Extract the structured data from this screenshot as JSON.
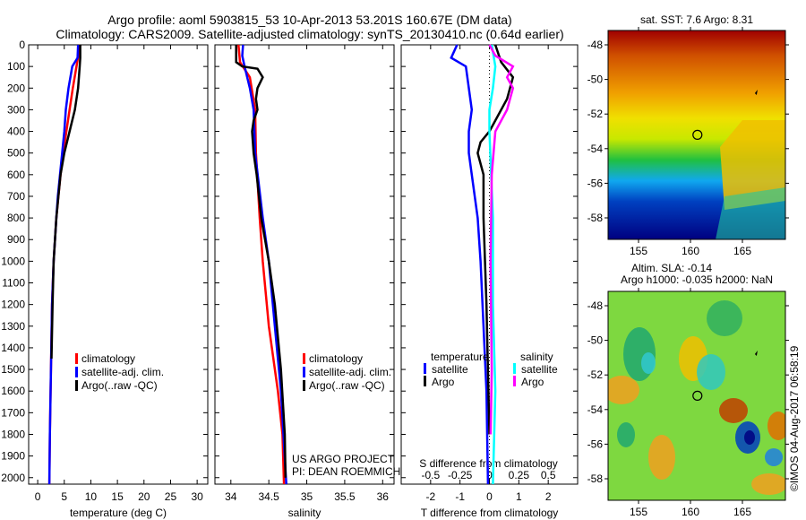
{
  "header": {
    "title_line1": "Argo profile: aoml 5903815_53 10-Apr-2013 53.201S 160.67E (DM data)",
    "title_line2": "Climatology: CARS2009. Satellite-adjusted climatology: synTS_20130410.nc (0.64d earlier)"
  },
  "colors": {
    "climatology": "#ff0000",
    "satellite": "#0000ff",
    "argo": "#000000",
    "sal_satellite": "#00ffff",
    "sal_argo": "#ff00ff"
  },
  "chart_data": [
    {
      "type": "line",
      "name": "temperature",
      "xlabel": "temperature (deg C)",
      "xlim": [
        -1.7,
        32
      ],
      "ylim": [
        0,
        2030
      ],
      "xticks": [
        0,
        5,
        10,
        15,
        20,
        25,
        30
      ],
      "yticks": [
        0,
        100,
        200,
        300,
        400,
        500,
        600,
        700,
        800,
        900,
        1000,
        1100,
        1200,
        1300,
        1400,
        1500,
        1600,
        1700,
        1800,
        1900,
        2000
      ],
      "legend": [
        "climatology",
        "satellite-adj. clim.",
        "Argo(..raw -QC)"
      ],
      "series": [
        {
          "name": "climatology",
          "color": "#ff0000",
          "depth": [
            0,
            100,
            200,
            300,
            400,
            500,
            600,
            700,
            800,
            1000,
            1200,
            1500,
            1800,
            2030
          ],
          "values": [
            8.0,
            7.3,
            6.6,
            6.0,
            5.4,
            4.8,
            4.3,
            3.9,
            3.5,
            3.0,
            2.7,
            2.5,
            2.3,
            2.2
          ]
        },
        {
          "name": "satellite-adj. clim.",
          "color": "#0000ff",
          "depth": [
            0,
            60,
            100,
            200,
            300,
            400,
            500,
            600,
            700,
            800,
            1000,
            1200,
            1500,
            1800,
            2030
          ],
          "values": [
            7.6,
            7.5,
            6.5,
            5.8,
            5.3,
            5.0,
            4.6,
            4.2,
            3.8,
            3.5,
            3.0,
            2.7,
            2.5,
            2.3,
            2.2
          ]
        },
        {
          "name": "Argo(..raw -QC)",
          "color": "#000000",
          "depth": [
            0,
            60,
            100,
            200,
            300,
            400,
            500,
            600,
            700,
            800,
            1000,
            1200,
            1450
          ],
          "values": [
            8.0,
            8.0,
            7.9,
            7.6,
            7.0,
            6.0,
            5.0,
            4.3,
            3.9,
            3.5,
            3.0,
            2.8,
            2.6
          ]
        }
      ]
    },
    {
      "type": "line",
      "name": "salinity",
      "xlabel": "salinity",
      "xlim": [
        33.79,
        36.15
      ],
      "ylim": [
        0,
        2030
      ],
      "xticks": [
        34,
        34.5,
        35,
        35.5,
        36
      ],
      "legend": [
        "climatology",
        "satellite-adj. clim.",
        "Argo(..raw -QC)"
      ],
      "annotation": [
        "US ARGO PROJECT",
        "PI: DEAN ROEMMICH"
      ],
      "series": [
        {
          "name": "climatology",
          "color": "#ff0000",
          "depth": [
            0,
            80,
            150,
            300,
            500,
            800,
            1000,
            1300,
            1600,
            1800,
            2030
          ],
          "values": [
            34.1,
            34.12,
            34.25,
            34.32,
            34.33,
            34.38,
            34.42,
            34.5,
            34.62,
            34.68,
            34.7
          ]
        },
        {
          "name": "satellite-adj. clim.",
          "color": "#0000ff",
          "depth": [
            0,
            50,
            100,
            200,
            300,
            500,
            800,
            1000,
            1300,
            1600,
            2030
          ],
          "values": [
            34.16,
            34.15,
            34.18,
            34.25,
            34.3,
            34.32,
            34.42,
            34.5,
            34.58,
            34.66,
            34.73
          ]
        },
        {
          "name": "Argo(..raw -QC)",
          "color": "#000000",
          "depth": [
            0,
            80,
            100,
            110,
            150,
            200,
            250,
            300,
            350,
            400,
            500,
            600,
            800,
            1000,
            1200,
            1500,
            1800,
            2000
          ],
          "values": [
            34.07,
            34.07,
            34.15,
            34.35,
            34.42,
            34.35,
            34.33,
            34.35,
            34.3,
            34.28,
            34.3,
            34.34,
            34.4,
            34.5,
            34.58,
            34.66,
            34.71,
            34.72
          ]
        }
      ]
    },
    {
      "type": "line",
      "name": "difference",
      "xlabel": "T difference from climatology",
      "xlabel_top": "S difference from climatology",
      "xlim": [
        -3,
        3
      ],
      "ylim": [
        0,
        2030
      ],
      "xticks": [
        -2,
        -1,
        0,
        1,
        2
      ],
      "sticks": [
        "-0.5",
        "-0.25",
        "0",
        "0.25",
        "0.5"
      ],
      "sticks_values": [
        -0.5,
        -0.25,
        0,
        0.25,
        0.5
      ],
      "legend_temperature": "temperature",
      "legend_salinity": "salinity",
      "legend_items": [
        "satellite",
        "Argo"
      ],
      "series": [
        {
          "name": "T satellite",
          "color": "#0000ff",
          "depth": [
            0,
            60,
            100,
            200,
            300,
            400,
            500,
            600,
            800,
            1000,
            1300,
            1600,
            2030
          ],
          "values": [
            -1.1,
            -1.3,
            -0.8,
            -0.7,
            -0.6,
            -0.7,
            -0.7,
            -0.6,
            -0.4,
            -0.3,
            -0.2,
            -0.1,
            -0.05
          ]
        },
        {
          "name": "T Argo",
          "color": "#000000",
          "depth": [
            0,
            80,
            150,
            250,
            400,
            450,
            500,
            600,
            800,
            1200,
            1800
          ],
          "values": [
            0.2,
            0.4,
            0.8,
            0.6,
            0,
            -0.3,
            -0.4,
            -0.2,
            -0.2,
            -0.1,
            0
          ]
        },
        {
          "name": "S satellite",
          "color": "#00ffff",
          "depth": [
            0,
            100,
            200,
            300,
            400,
            800,
            1200,
            1600,
            2030
          ],
          "values": [
            0.02,
            0.05,
            0.03,
            0,
            0,
            0.03,
            0.03,
            0.05,
            0.03
          ],
          "scale": "S"
        },
        {
          "name": "S Argo",
          "color": "#ff00ff",
          "depth": [
            0,
            50,
            100,
            150,
            200,
            300,
            400,
            600,
            1000,
            1500,
            1800
          ],
          "values": [
            0,
            0.05,
            0.2,
            0.15,
            0.2,
            0.15,
            0.05,
            0.02,
            0.01,
            0.02,
            0.01
          ],
          "scale": "S"
        }
      ]
    }
  ],
  "maps": {
    "sst_title": "sat. SST: 7.6 Argo: 8.31",
    "sla_title1": "Altim. SLA: -0.14",
    "sla_title2": "Argo h1000: -0.035 h2000: NaN",
    "lon_ticks": [
      "155",
      "160",
      "165"
    ],
    "lat_ticks": [
      "-48",
      "-50",
      "-52",
      "-54",
      "-56",
      "-58"
    ],
    "float_lon": 160.67,
    "float_lat": -53.2
  },
  "footer_stamp": "©IMOS 04-Aug-2017 06:58:19"
}
